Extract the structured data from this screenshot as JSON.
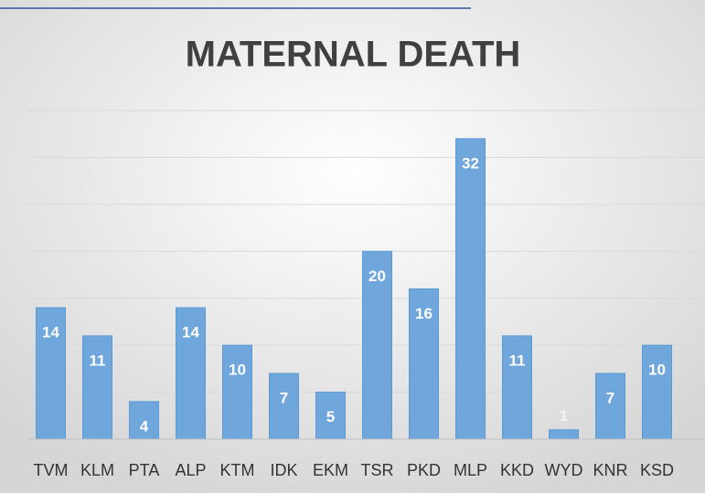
{
  "chart_data": {
    "type": "bar",
    "title": "MATERNAL DEATH",
    "categories": [
      "TVM",
      "KLM",
      "PTA",
      "ALP",
      "KTM",
      "IDK",
      "EKM",
      "TSR",
      "PKD",
      "MLP",
      "KKD",
      "WYD",
      "KNR",
      "KSD"
    ],
    "values": [
      14,
      11,
      4,
      14,
      10,
      7,
      5,
      20,
      16,
      32,
      11,
      1,
      7,
      10
    ],
    "color": "#6fa6dc",
    "ylim": [
      0,
      35
    ],
    "yticks": [
      0,
      5,
      10,
      15,
      20,
      25,
      30,
      35
    ],
    "grid": true
  }
}
